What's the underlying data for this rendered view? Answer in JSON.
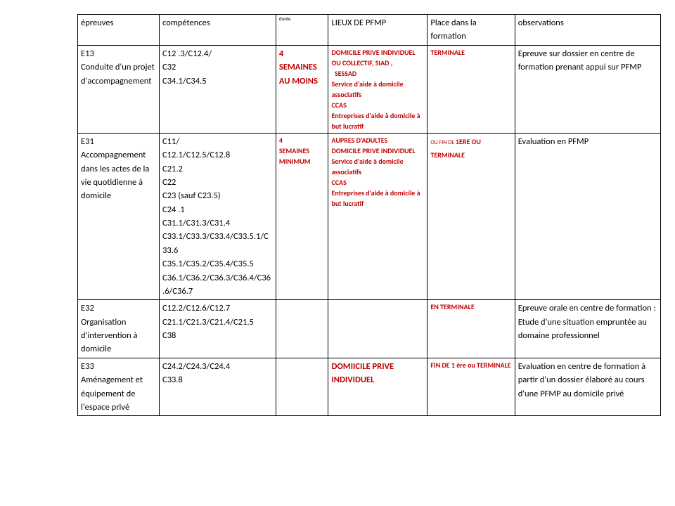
{
  "head": {
    "epreuves": "épreuves",
    "comp": "compétences",
    "duree": "durée",
    "lieux": "LIEUX DE PFMP",
    "place": "Place dans la formation",
    "obs": "observations"
  },
  "r1": {
    "ep_l1": "E13",
    "ep_l2": "Conduite d'un projet d'accompagnement",
    "comp_l1": "C12 .3/C12.4/",
    "comp_l2": "C32",
    "comp_l3": "C34.1/C34.5",
    "dur_l1": "4",
    "dur_l2": "SEMAINES AU MOINS",
    "lieu_l1": "DOMICILE PRIVE INDIVIDUEL OU COLLECTIF, SIAD ,",
    "lieu_l2": "  SESSAD",
    "lieu_l3": "Service d'aide à domicile associatifs",
    "lieu_l4": "CCAS",
    "lieu_l5": "Entreprises d'aide à domicile à but lucratif",
    "place": "TERMINALE",
    "obs": "Epreuve sur dossier en centre de formation prenant appui sur PFMP"
  },
  "r2": {
    "ep_l1": "E31",
    "ep_l2": "Accompagnement dans les actes de la vie quotidienne à domicile",
    "comp_l1": "C11/",
    "comp_l2": "C12.1/C12.5/C12.8",
    "comp_l3": "C21.2",
    "comp_l4": "C22",
    "comp_l5": "C23 (sauf C23.5)",
    "comp_l6": "C24 .1",
    "comp_l7": "C31.1/C31.3/C31.4",
    "comp_l8": "C33.1/C33.3/C33.4/C33.5.1/C33.6",
    "comp_l9": "C35.1/C35.2/C35.4/C35.5",
    "comp_l10": "C36.1/C36.2/C36.3/C36.4/C36.6/C36.7",
    "dur_l1": "4",
    "dur_l2": "SEMAINES",
    "dur_l3": "MINIMUM",
    "lieu_l1": "AUPRES D'ADULTES",
    "lieu_l2": "DOMICILE PRIVE INDIVIDUEL",
    "lieu_l3": "Service d'aide à domicile associatifs",
    "lieu_l4": "CCAS",
    "lieu_l5": "Entreprises d'aide à domicile à but lucratif",
    "place_a": "OU FIN DE ",
    "place_b": "1ERE OU TERMINALE",
    "obs": "Evaluation en PFMP"
  },
  "r3": {
    "ep_l1": "E32",
    "ep_l2": "Organisation d'intervention à domicile",
    "comp_l1": "C12.2/C12.6/C12.7",
    "comp_l2": "C21.1/C21.3/C21.4/C21.5",
    "comp_l3": "C38",
    "place": "EN TERMINALE",
    "obs": "Epreuve orale en centre de formation : Etude d'une situation empruntée au domaine professionnel"
  },
  "r4": {
    "ep_l1": "E33",
    "ep_l2": "Aménagement et équipement de l'espace privé",
    "comp_l1": "C24.2/C24.3/C24.4",
    "comp_l2": "C33.8",
    "lieu": "DOMIICILE PRIVE INDIVIDUEL",
    "place": "FIN DE 1 ère ou TERMINALE",
    "obs": "Evaluation en centre de formation à partir d'un dossier élaboré au cours d'une PFMP au domicile privé"
  }
}
